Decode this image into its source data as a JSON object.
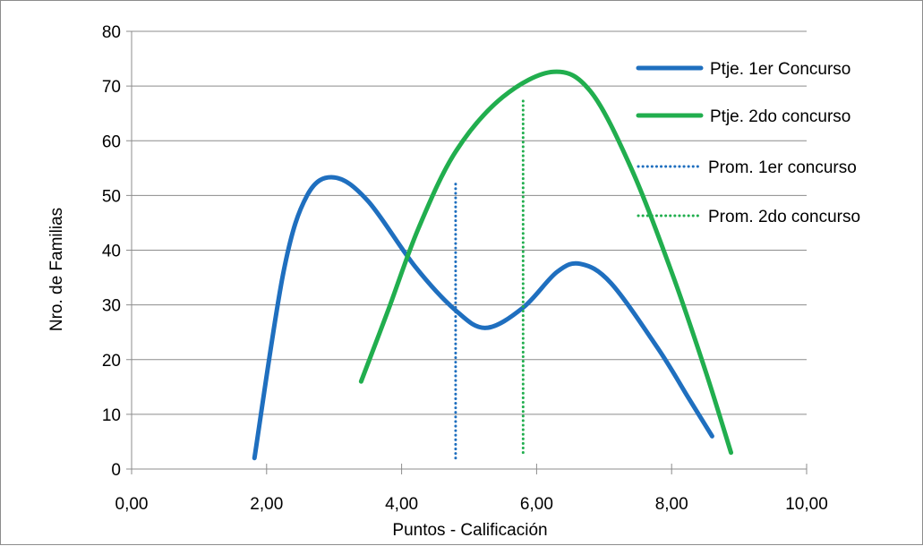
{
  "chart_data": {
    "type": "line",
    "title": "",
    "xlabel": "Puntos - Calificación",
    "ylabel": "Nro. de Familias",
    "xlim": [
      0,
      10
    ],
    "ylim": [
      0,
      80
    ],
    "x_ticks": [
      "0,00",
      "2,00",
      "4,00",
      "6,00",
      "8,00",
      "10,00"
    ],
    "y_ticks": [
      "0",
      "10",
      "20",
      "30",
      "40",
      "50",
      "60",
      "70",
      "80"
    ],
    "grid": "horizontal",
    "legend_position": "right",
    "series": [
      {
        "name": "Ptje. 1er Concurso",
        "color": "#1f6fbf",
        "style": "solid",
        "points": [
          [
            1.82,
            2
          ],
          [
            2.25,
            36
          ],
          [
            2.6,
            50
          ],
          [
            3.0,
            53.3
          ],
          [
            3.5,
            49
          ],
          [
            4.2,
            37
          ],
          [
            4.8,
            29
          ],
          [
            5.25,
            25.8
          ],
          [
            5.8,
            29.5
          ],
          [
            6.3,
            36
          ],
          [
            6.65,
            37.5
          ],
          [
            7.1,
            34
          ],
          [
            7.8,
            22
          ],
          [
            8.25,
            13
          ],
          [
            8.6,
            6
          ]
        ]
      },
      {
        "name": "Ptje. 2do concurso",
        "color": "#21ae4e",
        "style": "solid",
        "points": [
          [
            3.4,
            16
          ],
          [
            3.8,
            29
          ],
          [
            4.25,
            44
          ],
          [
            4.8,
            58
          ],
          [
            5.5,
            68
          ],
          [
            6.25,
            72.6
          ],
          [
            6.8,
            69
          ],
          [
            7.4,
            55
          ],
          [
            8.0,
            36
          ],
          [
            8.5,
            18
          ],
          [
            8.88,
            3
          ]
        ]
      },
      {
        "name": "Prom. 1er concurso",
        "color": "#1f6fbf",
        "style": "dotted",
        "points": [
          [
            4.8,
            2
          ],
          [
            4.8,
            52.5
          ]
        ]
      },
      {
        "name": "Prom. 2do concurso",
        "color": "#21ae4e",
        "style": "dotted",
        "points": [
          [
            5.8,
            3
          ],
          [
            5.8,
            67.5
          ]
        ]
      }
    ]
  }
}
